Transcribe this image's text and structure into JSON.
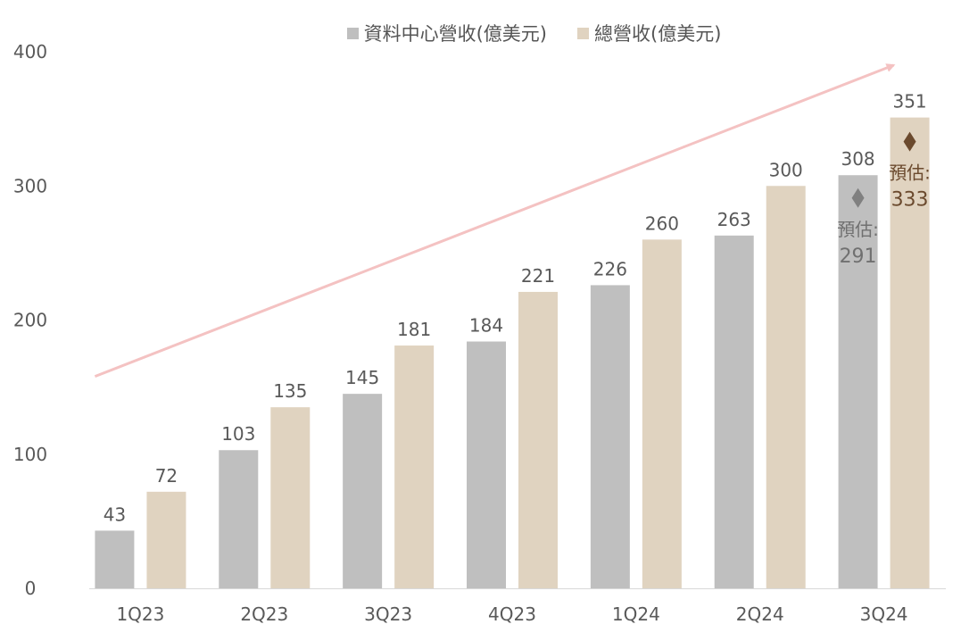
{
  "chart_data": {
    "type": "bar",
    "categories": [
      "1Q23",
      "2Q23",
      "3Q23",
      "4Q23",
      "1Q24",
      "2Q24",
      "3Q24"
    ],
    "series": [
      {
        "name": "資料中心營收(億美元)",
        "values": [
          43,
          103,
          145,
          184,
          226,
          263,
          308
        ],
        "color": "#bfbfbf"
      },
      {
        "name": "總營收(億美元)",
        "values": [
          72,
          135,
          181,
          221,
          260,
          300,
          351
        ],
        "color": "#e0d3c0"
      }
    ],
    "ylim": [
      0,
      400
    ],
    "yticks": [
      "0",
      "100",
      "200",
      "300",
      "400"
    ],
    "grid": false,
    "legend_position": "top",
    "estimates": [
      {
        "series": 0,
        "category": "3Q24",
        "value": 291,
        "label_line1": "預估:",
        "label_line2": "291",
        "marker_color": "#808080",
        "text_color": "#707070"
      },
      {
        "series": 1,
        "category": "3Q24",
        "value": 333,
        "label_line1": "預估:",
        "label_line2": "333",
        "marker_color": "#6b4a2e",
        "text_color": "#6b4a2e"
      }
    ],
    "trend_arrow": {
      "color": "#f4c2c2",
      "from": {
        "category": "1Q23",
        "value": 158
      },
      "to": {
        "category": "3Q24",
        "value": 390
      }
    }
  }
}
